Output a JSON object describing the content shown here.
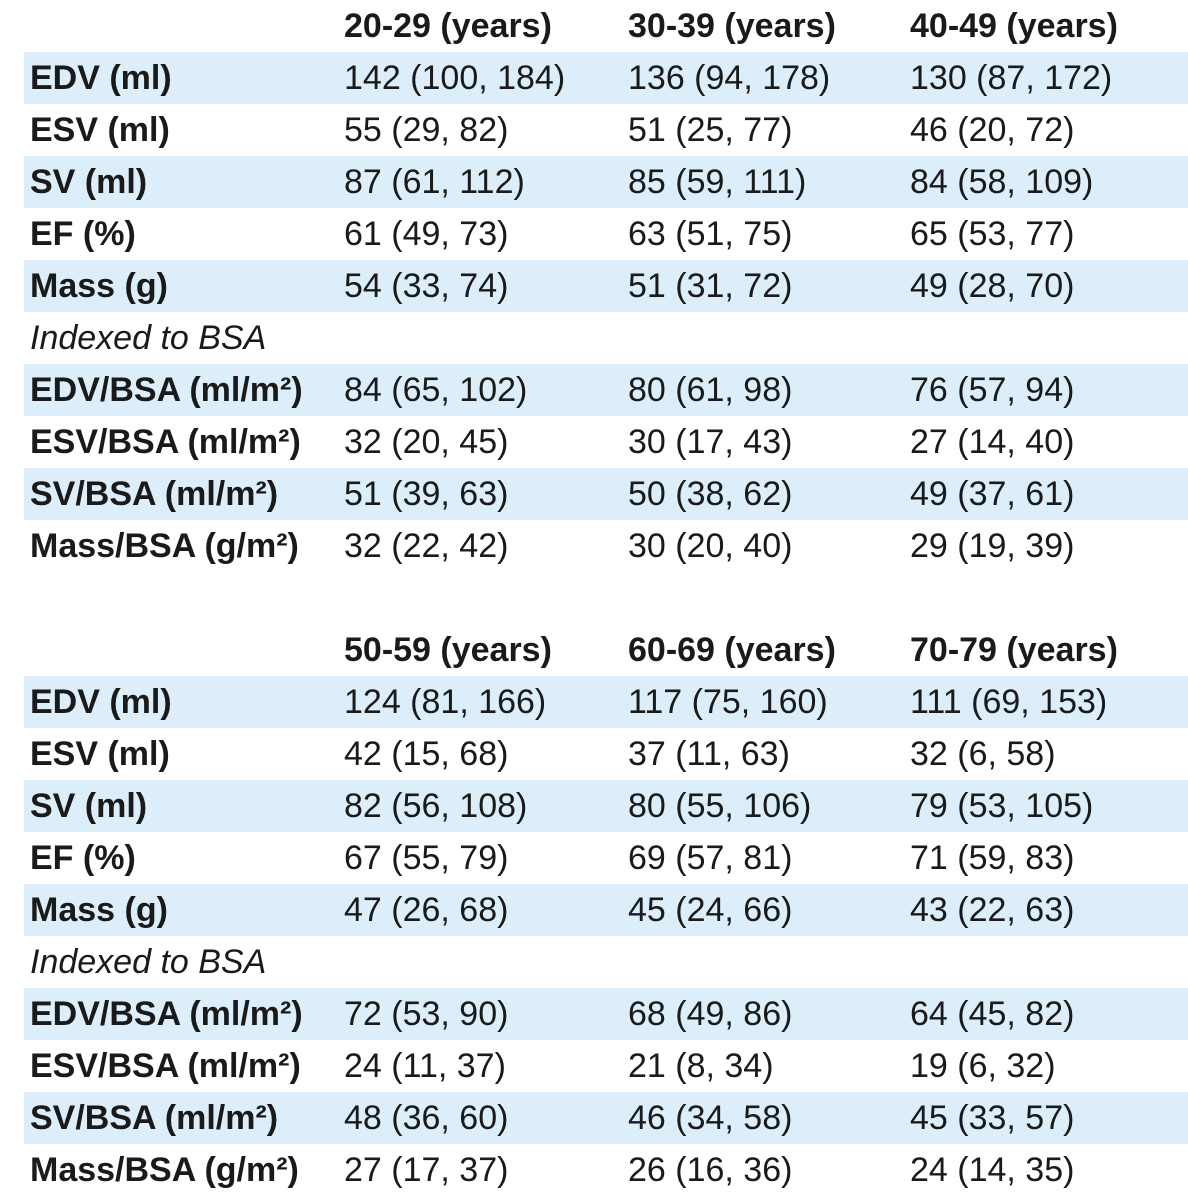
{
  "tables": [
    {
      "headers": [
        "",
        "20-29 (years)",
        "30-39 (years)",
        "40-49 (years)"
      ],
      "rows": [
        {
          "label": "EDV (ml)",
          "values": [
            "142 (100, 184)",
            "136 (94, 178)",
            "130 (87, 172)"
          ]
        },
        {
          "label": "ESV (ml)",
          "values": [
            "55 (29, 82)",
            "51 (25, 77)",
            "46 (20, 72)"
          ]
        },
        {
          "label": "SV (ml)",
          "values": [
            "87 (61, 112)",
            "85 (59, 111)",
            "84 (58, 109)"
          ]
        },
        {
          "label": "EF (%)",
          "values": [
            "61 (49, 73)",
            "63 (51, 75)",
            "65 (53, 77)"
          ]
        },
        {
          "label": "Mass (g)",
          "values": [
            "54 (33, 74)",
            "51 (31, 72)",
            "49 (28, 70)"
          ]
        }
      ],
      "section_label": "Indexed to BSA",
      "indexed_rows": [
        {
          "label": "EDV/BSA (ml/m²)",
          "values": [
            "84 (65, 102)",
            "80 (61, 98)",
            "76 (57, 94)"
          ]
        },
        {
          "label": "ESV/BSA (ml/m²)",
          "values": [
            "32 (20, 45)",
            "30 (17, 43)",
            "27 (14, 40)"
          ]
        },
        {
          "label": "SV/BSA (ml/m²)",
          "values": [
            "51 (39, 63)",
            "50 (38, 62)",
            "49 (37, 61)"
          ]
        },
        {
          "label": "Mass/BSA (g/m²)",
          "values": [
            "32 (22, 42)",
            "30 (20, 40)",
            "29 (19, 39)"
          ]
        }
      ]
    },
    {
      "headers": [
        "",
        "50-59 (years)",
        "60-69 (years)",
        "70-79 (years)"
      ],
      "rows": [
        {
          "label": "EDV (ml)",
          "values": [
            "124 (81, 166)",
            "117 (75, 160)",
            "111 (69, 153)"
          ]
        },
        {
          "label": "ESV (ml)",
          "values": [
            "42 (15, 68)",
            "37 (11, 63)",
            "32 (6, 58)"
          ]
        },
        {
          "label": "SV (ml)",
          "values": [
            "82 (56, 108)",
            "80 (55, 106)",
            "79 (53, 105)"
          ]
        },
        {
          "label": "EF (%)",
          "values": [
            "67 (55, 79)",
            "69 (57, 81)",
            "71 (59, 83)"
          ]
        },
        {
          "label": "Mass (g)",
          "values": [
            "47 (26, 68)",
            "45 (24, 66)",
            "43 (22, 63)"
          ]
        }
      ],
      "section_label": "Indexed to BSA",
      "indexed_rows": [
        {
          "label": "EDV/BSA (ml/m²)",
          "values": [
            "72 (53, 90)",
            "68 (49, 86)",
            "64 (45, 82)"
          ]
        },
        {
          "label": "ESV/BSA (ml/m²)",
          "values": [
            "24 (11, 37)",
            "21 (8, 34)",
            "19 (6, 32)"
          ]
        },
        {
          "label": "SV/BSA (ml/m²)",
          "values": [
            "48 (36, 60)",
            "46 (34, 58)",
            "45 (33, 57)"
          ]
        },
        {
          "label": "Mass/BSA (g/m²)",
          "values": [
            "27 (17, 37)",
            "26 (16, 36)",
            "24 (14, 35)"
          ]
        }
      ]
    }
  ],
  "colors": {
    "row_shading": "#dbeefa",
    "text": "#1a1a1a"
  }
}
